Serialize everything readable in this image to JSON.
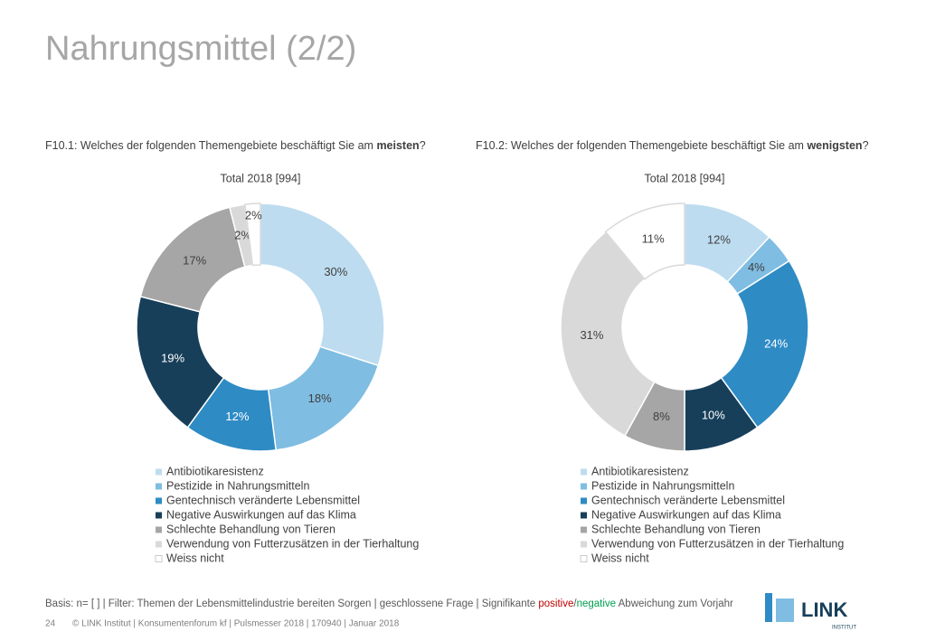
{
  "title": "Nahrungsmittel (2/2)",
  "chart_data": [
    {
      "type": "pie",
      "question": [
        "F10.1",
        ": Welches der folgenden Themengebiete beschäftigt Sie am ",
        "meisten",
        "?"
      ],
      "subtitle": "Total 2018 [994]",
      "categories": [
        "Antibiotikaresistenz",
        "Pestizide in Nahrungsmitteln",
        "Gentechnisch veränderte Lebensmittel",
        "Negative Auswirkungen auf das Klima",
        "Schlechte Behandlung von Tieren",
        "Verwendung von Futterzusätzen in der Tierhaltung",
        "Weiss nicht"
      ],
      "values": [
        30,
        18,
        12,
        19,
        17,
        2,
        2
      ],
      "value_labels": [
        "30%",
        "18%",
        "12%",
        "19%",
        "17%",
        "2%",
        "2%"
      ],
      "colors": [
        "#bddcf0",
        "#7fbde2",
        "#2e8bc4",
        "#173f5a",
        "#a6a6a6",
        "#d9d9d9",
        "#ffffff"
      ]
    },
    {
      "type": "pie",
      "question": [
        "F10.2",
        ": Welches der folgenden Themengebiete beschäftigt Sie am ",
        "wenigsten",
        "?"
      ],
      "subtitle": "Total 2018 [994]",
      "categories": [
        "Antibiotikaresistenz",
        "Pestizide in Nahrungsmitteln",
        "Gentechnisch veränderte Lebensmittel",
        "Negative Auswirkungen auf das Klima",
        "Schlechte Behandlung von Tieren",
        "Verwendung von Futterzusätzen in der Tierhaltung",
        "Weiss nicht"
      ],
      "values": [
        12,
        4,
        24,
        10,
        8,
        31,
        11
      ],
      "value_labels": [
        "12%",
        "4%",
        "24%",
        "10%",
        "8%",
        "31%",
        "11%"
      ],
      "colors": [
        "#bddcf0",
        "#7fbde2",
        "#2e8bc4",
        "#173f5a",
        "#a6a6a6",
        "#d9d9d9",
        "#ffffff"
      ]
    }
  ],
  "basis": [
    "Basis: n= [ ] | Filter: Themen der Lebensmittelindustrie bereiten Sorgen | geschlossene Frage | Signifikante ",
    "positive",
    "/",
    "negative",
    " Abweichung zum Vorjahr"
  ],
  "footer": {
    "page": "24",
    "text": "© LINK Institut | Konsumentenforum kf | Pulsmesser 2018 | 170940 | Januar 2018"
  },
  "logo": {
    "name": "LINK",
    "sub": "INSTITUT"
  }
}
